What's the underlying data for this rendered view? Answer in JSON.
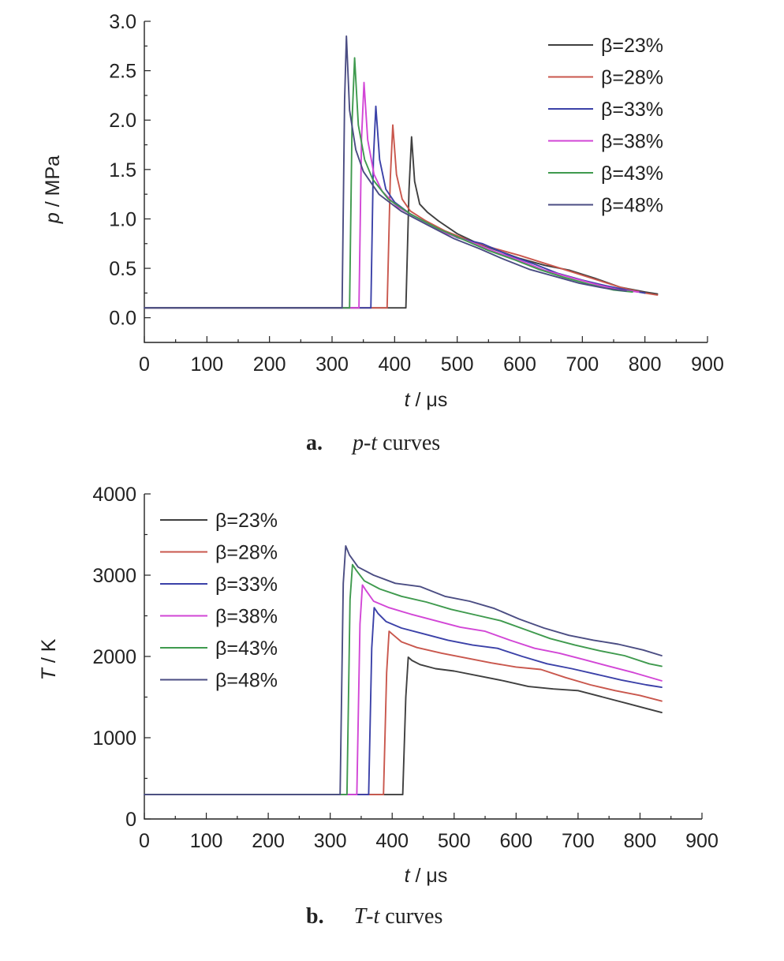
{
  "chart_data": [
    {
      "type": "line",
      "panel": "a",
      "title": "",
      "xlabel": {
        "var": "t",
        "unit": " / μs"
      },
      "ylabel": {
        "var": "p",
        "unit": " / MPa"
      },
      "xlim": [
        0,
        900
      ],
      "ylim": [
        -0.25,
        3.0
      ],
      "xticks": [
        "0",
        "100",
        "200",
        "300",
        "400",
        "500",
        "600",
        "700",
        "800",
        "900"
      ],
      "yticks": [
        "0.0",
        "0.5",
        "1.0",
        "1.5",
        "2.0",
        "2.5",
        "3.0"
      ],
      "legend_position": "top-right",
      "caption": {
        "letter": "a.",
        "var1": "p",
        "var2": "t",
        "text": " curves"
      },
      "series": [
        {
          "name": "β=23%",
          "color": "#3f3f3f",
          "x": [
            0,
            418,
            423,
            427,
            432,
            440,
            452,
            470,
            500,
            530,
            560,
            600,
            640,
            680,
            720,
            760,
            800,
            820
          ],
          "y": [
            0.1,
            0.1,
            1.3,
            1.83,
            1.38,
            1.15,
            1.07,
            0.98,
            0.85,
            0.76,
            0.69,
            0.6,
            0.53,
            0.48,
            0.4,
            0.31,
            0.26,
            0.24
          ]
        },
        {
          "name": "β=28%",
          "color": "#c9574d",
          "x": [
            0,
            388,
            393,
            397,
            403,
            412,
            425,
            450,
            480,
            520,
            560,
            600,
            640,
            680,
            720,
            760,
            800,
            820
          ],
          "y": [
            0.1,
            0.1,
            1.4,
            1.95,
            1.45,
            1.2,
            1.08,
            0.98,
            0.88,
            0.78,
            0.7,
            0.63,
            0.55,
            0.47,
            0.39,
            0.31,
            0.25,
            0.23
          ]
        },
        {
          "name": "β=33%",
          "color": "#3b41a8",
          "x": [
            0,
            362,
            366,
            370,
            376,
            386,
            400,
            425,
            460,
            500,
            540,
            580,
            620,
            660,
            700,
            740,
            780,
            800
          ],
          "y": [
            0.1,
            0.1,
            1.6,
            2.14,
            1.6,
            1.3,
            1.17,
            1.05,
            0.93,
            0.81,
            0.75,
            0.64,
            0.55,
            0.45,
            0.38,
            0.32,
            0.27,
            0.25
          ]
        },
        {
          "name": "β=38%",
          "color": "#d246d6",
          "x": [
            0,
            343,
            347,
            351,
            357,
            367,
            380,
            405,
            440,
            480,
            520,
            560,
            600,
            640,
            680,
            720,
            760,
            790
          ],
          "y": [
            0.1,
            0.1,
            1.8,
            2.38,
            1.8,
            1.45,
            1.28,
            1.12,
            1.0,
            0.86,
            0.77,
            0.67,
            0.58,
            0.48,
            0.41,
            0.34,
            0.28,
            0.26
          ]
        },
        {
          "name": "β=43%",
          "color": "#3f9a4e",
          "x": [
            0,
            328,
            332,
            336,
            342,
            352,
            365,
            390,
            425,
            470,
            510,
            550,
            590,
            630,
            670,
            710,
            750,
            780
          ],
          "y": [
            0.1,
            0.1,
            2.0,
            2.63,
            1.95,
            1.6,
            1.4,
            1.2,
            1.05,
            0.9,
            0.79,
            0.68,
            0.59,
            0.49,
            0.41,
            0.34,
            0.28,
            0.26
          ]
        },
        {
          "name": "β=48%",
          "color": "#4b4d83",
          "x": [
            0,
            316,
            320,
            323,
            328,
            338,
            350,
            375,
            410,
            455,
            495,
            535,
            575,
            615,
            655,
            695,
            735,
            770
          ],
          "y": [
            0.1,
            0.1,
            2.2,
            2.85,
            2.1,
            1.7,
            1.48,
            1.25,
            1.08,
            0.93,
            0.8,
            0.7,
            0.59,
            0.49,
            0.42,
            0.35,
            0.3,
            0.27
          ]
        }
      ]
    },
    {
      "type": "line",
      "panel": "b",
      "title": "",
      "xlabel": {
        "var": "t",
        "unit": " / μs"
      },
      "ylabel": {
        "var": "T",
        "unit": " / K"
      },
      "xlim": [
        0,
        900
      ],
      "ylim": [
        0,
        4000
      ],
      "xticks": [
        "0",
        "100",
        "200",
        "300",
        "400",
        "500",
        "600",
        "700",
        "800",
        "900"
      ],
      "yticks": [
        "0",
        "1000",
        "2000",
        "3000",
        "4000"
      ],
      "legend_position": "top-left",
      "caption": {
        "letter": "b.",
        "var1": "T",
        "var2": "t",
        "text": " curves"
      },
      "series": [
        {
          "name": "β=23%",
          "color": "#3f3f3f",
          "x": [
            0,
            417,
            422,
            426,
            432,
            445,
            470,
            500,
            540,
            580,
            620,
            660,
            700,
            740,
            780,
            810,
            835
          ],
          "y": [
            300,
            300,
            1500,
            1990,
            1950,
            1900,
            1850,
            1820,
            1760,
            1700,
            1630,
            1600,
            1580,
            1500,
            1420,
            1360,
            1310
          ]
        },
        {
          "name": "β=28%",
          "color": "#c9574d",
          "x": [
            0,
            386,
            391,
            395,
            401,
            415,
            440,
            480,
            520,
            560,
            600,
            640,
            680,
            720,
            760,
            800,
            835
          ],
          "y": [
            300,
            300,
            1800,
            2310,
            2270,
            2180,
            2110,
            2040,
            1980,
            1920,
            1870,
            1840,
            1740,
            1650,
            1580,
            1520,
            1450
          ]
        },
        {
          "name": "β=33%",
          "color": "#3b41a8",
          "x": [
            0,
            362,
            367,
            371,
            377,
            390,
            415,
            450,
            490,
            530,
            570,
            610,
            650,
            690,
            730,
            770,
            810,
            835
          ],
          "y": [
            300,
            300,
            2100,
            2600,
            2530,
            2430,
            2350,
            2280,
            2200,
            2140,
            2100,
            2000,
            1910,
            1850,
            1780,
            1710,
            1650,
            1620
          ]
        },
        {
          "name": "β=38%",
          "color": "#d246d6",
          "x": [
            0,
            343,
            348,
            352,
            358,
            370,
            395,
            430,
            470,
            510,
            550,
            590,
            630,
            670,
            710,
            750,
            790,
            835
          ],
          "y": [
            300,
            300,
            2400,
            2880,
            2810,
            2680,
            2600,
            2520,
            2440,
            2360,
            2310,
            2200,
            2100,
            2040,
            1960,
            1880,
            1800,
            1700
          ]
        },
        {
          "name": "β=43%",
          "color": "#3f9a4e",
          "x": [
            0,
            327,
            332,
            336,
            342,
            355,
            380,
            415,
            455,
            495,
            535,
            575,
            615,
            655,
            695,
            735,
            775,
            815,
            835
          ],
          "y": [
            300,
            300,
            2700,
            3130,
            3060,
            2930,
            2830,
            2740,
            2670,
            2580,
            2510,
            2440,
            2330,
            2220,
            2140,
            2070,
            2010,
            1910,
            1880
          ]
        },
        {
          "name": "β=48%",
          "color": "#4b4d83",
          "x": [
            0,
            316,
            321,
            325,
            331,
            345,
            370,
            405,
            445,
            485,
            525,
            565,
            605,
            645,
            685,
            725,
            765,
            805,
            835
          ],
          "y": [
            300,
            300,
            2900,
            3360,
            3250,
            3100,
            3000,
            2900,
            2860,
            2740,
            2680,
            2590,
            2460,
            2350,
            2260,
            2200,
            2150,
            2080,
            2010
          ]
        }
      ]
    }
  ]
}
